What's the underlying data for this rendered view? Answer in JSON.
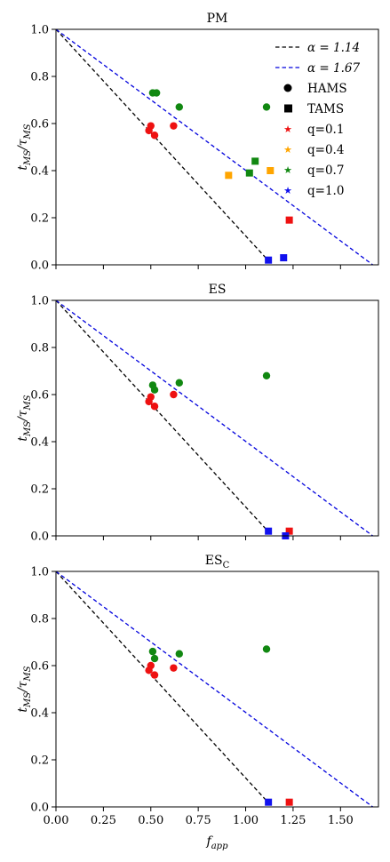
{
  "figure": {
    "ylabel_main": "t",
    "ylabel_sub": "MS",
    "ylabel_slash": "/τ",
    "ylabel_sub2": "MS",
    "xlabel_main": "f",
    "xlabel_sub": "app"
  },
  "legend": {
    "lines": [
      {
        "label": "α = 1.14",
        "color": "#000000"
      },
      {
        "label": "α = 1.67",
        "color": "#0000dd"
      }
    ],
    "markers": [
      {
        "label": "HAMS",
        "shape": "circle"
      },
      {
        "label": "TAMS",
        "shape": "square"
      }
    ],
    "q_entries": [
      {
        "label": "q=0.1",
        "color": "#ee1111"
      },
      {
        "label": "q=0.4",
        "color": "#ffa500"
      },
      {
        "label": "q=0.7",
        "color": "#118811"
      },
      {
        "label": "q=1.0",
        "color": "#1111ee"
      }
    ]
  },
  "colors": {
    "q0.1": "#ee1111",
    "q0.4": "#ffa500",
    "q0.7": "#118811",
    "q1.0": "#1111ee"
  },
  "chart_data": [
    {
      "type": "scatter",
      "title": "PM",
      "title_sub": "",
      "xlim": [
        0,
        1.7
      ],
      "ylim": [
        0,
        1.0
      ],
      "x_ticks": [
        "0.00",
        "0.25",
        "0.50",
        "0.75",
        "1.00",
        "1.25",
        "1.50"
      ],
      "y_ticks": [
        "0.0",
        "0.2",
        "0.4",
        "0.6",
        "0.8",
        "1.0"
      ],
      "show_x_ticklabels": false,
      "lines": [
        {
          "name": "α = 1.14",
          "alpha": 1.14,
          "color": "#000000"
        },
        {
          "name": "α = 1.67",
          "alpha": 1.67,
          "color": "#0000dd"
        }
      ],
      "points": [
        {
          "x": 0.5,
          "y": 0.59,
          "q": "0.1",
          "shape": "circle"
        },
        {
          "x": 0.49,
          "y": 0.57,
          "q": "0.1",
          "shape": "circle"
        },
        {
          "x": 0.52,
          "y": 0.55,
          "q": "0.1",
          "shape": "circle"
        },
        {
          "x": 0.62,
          "y": 0.59,
          "q": "0.1",
          "shape": "circle"
        },
        {
          "x": 0.51,
          "y": 0.73,
          "q": "0.7",
          "shape": "circle"
        },
        {
          "x": 0.53,
          "y": 0.73,
          "q": "0.7",
          "shape": "circle"
        },
        {
          "x": 0.65,
          "y": 0.67,
          "q": "0.7",
          "shape": "circle"
        },
        {
          "x": 1.11,
          "y": 0.67,
          "q": "0.7",
          "shape": "circle"
        },
        {
          "x": 1.23,
          "y": 0.19,
          "q": "0.1",
          "shape": "square"
        },
        {
          "x": 0.91,
          "y": 0.38,
          "q": "0.4",
          "shape": "square"
        },
        {
          "x": 1.13,
          "y": 0.4,
          "q": "0.4",
          "shape": "square"
        },
        {
          "x": 1.02,
          "y": 0.39,
          "q": "0.7",
          "shape": "square"
        },
        {
          "x": 1.05,
          "y": 0.44,
          "q": "0.7",
          "shape": "square"
        },
        {
          "x": 1.12,
          "y": 0.02,
          "q": "1.0",
          "shape": "square"
        },
        {
          "x": 1.2,
          "y": 0.03,
          "q": "1.0",
          "shape": "square"
        }
      ]
    },
    {
      "type": "scatter",
      "title": "ES",
      "title_sub": "",
      "xlim": [
        0,
        1.7
      ],
      "ylim": [
        0,
        1.0
      ],
      "x_ticks": [
        "0.00",
        "0.25",
        "0.50",
        "0.75",
        "1.00",
        "1.25",
        "1.50"
      ],
      "y_ticks": [
        "0.0",
        "0.2",
        "0.4",
        "0.6",
        "0.8",
        "1.0"
      ],
      "show_x_ticklabels": false,
      "lines": [
        {
          "name": "α = 1.14",
          "alpha": 1.14,
          "color": "#000000"
        },
        {
          "name": "α = 1.67",
          "alpha": 1.67,
          "color": "#0000dd"
        }
      ],
      "points": [
        {
          "x": 0.5,
          "y": 0.59,
          "q": "0.1",
          "shape": "circle"
        },
        {
          "x": 0.49,
          "y": 0.57,
          "q": "0.1",
          "shape": "circle"
        },
        {
          "x": 0.52,
          "y": 0.55,
          "q": "0.1",
          "shape": "circle"
        },
        {
          "x": 0.62,
          "y": 0.6,
          "q": "0.1",
          "shape": "circle"
        },
        {
          "x": 0.51,
          "y": 0.64,
          "q": "0.7",
          "shape": "circle"
        },
        {
          "x": 0.52,
          "y": 0.62,
          "q": "0.7",
          "shape": "circle"
        },
        {
          "x": 0.65,
          "y": 0.65,
          "q": "0.7",
          "shape": "circle"
        },
        {
          "x": 1.11,
          "y": 0.68,
          "q": "0.7",
          "shape": "circle"
        },
        {
          "x": 1.23,
          "y": 0.02,
          "q": "0.1",
          "shape": "square"
        },
        {
          "x": 1.12,
          "y": 0.02,
          "q": "1.0",
          "shape": "square"
        },
        {
          "x": 1.21,
          "y": 0.0,
          "q": "1.0",
          "shape": "square"
        }
      ]
    },
    {
      "type": "scatter",
      "title": "ES",
      "title_sub": "C",
      "xlim": [
        0,
        1.7
      ],
      "ylim": [
        0,
        1.0
      ],
      "x_ticks": [
        "0.00",
        "0.25",
        "0.50",
        "0.75",
        "1.00",
        "1.25",
        "1.50"
      ],
      "y_ticks": [
        "0.0",
        "0.2",
        "0.4",
        "0.6",
        "0.8",
        "1.0"
      ],
      "show_x_ticklabels": true,
      "lines": [
        {
          "name": "α = 1.14",
          "alpha": 1.14,
          "color": "#000000"
        },
        {
          "name": "α = 1.67",
          "alpha": 1.67,
          "color": "#0000dd"
        }
      ],
      "points": [
        {
          "x": 0.5,
          "y": 0.6,
          "q": "0.1",
          "shape": "circle"
        },
        {
          "x": 0.49,
          "y": 0.58,
          "q": "0.1",
          "shape": "circle"
        },
        {
          "x": 0.52,
          "y": 0.56,
          "q": "0.1",
          "shape": "circle"
        },
        {
          "x": 0.62,
          "y": 0.59,
          "q": "0.1",
          "shape": "circle"
        },
        {
          "x": 0.51,
          "y": 0.66,
          "q": "0.7",
          "shape": "circle"
        },
        {
          "x": 0.52,
          "y": 0.63,
          "q": "0.7",
          "shape": "circle"
        },
        {
          "x": 0.65,
          "y": 0.65,
          "q": "0.7",
          "shape": "circle"
        },
        {
          "x": 1.11,
          "y": 0.67,
          "q": "0.7",
          "shape": "circle"
        },
        {
          "x": 1.23,
          "y": 0.02,
          "q": "0.1",
          "shape": "square"
        },
        {
          "x": 1.12,
          "y": 0.02,
          "q": "1.0",
          "shape": "square"
        }
      ]
    }
  ]
}
